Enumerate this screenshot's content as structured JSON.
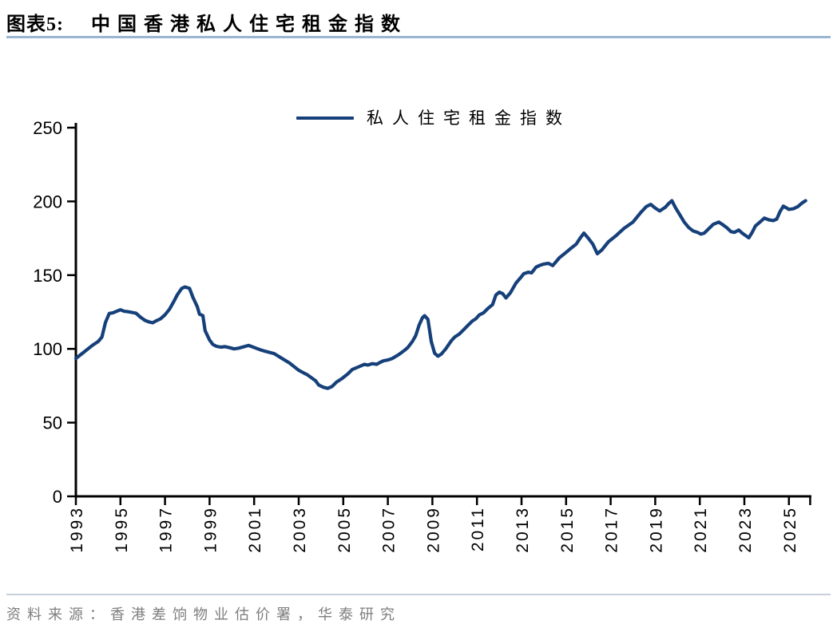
{
  "header": {
    "tag": "图表5:",
    "title": "中国香港私人住宅租金指数"
  },
  "legend": {
    "label": "私人住宅租金指数"
  },
  "source": {
    "text": "资料来源：香港差饷物业估价署，华泰研究"
  },
  "colors": {
    "line": "#16407A",
    "axis": "#000000",
    "title_underline": "#9BB6D2",
    "source_divider": "#C7D0D8",
    "source_text": "#7E7E7E"
  },
  "chart_data": {
    "type": "line",
    "title": "中国香港私人住宅租金指数",
    "xlabel": "",
    "ylabel": "",
    "ylim": [
      0,
      250
    ],
    "yticks": [
      0,
      50,
      100,
      150,
      200,
      250
    ],
    "x_tick_years": [
      1993,
      1995,
      1997,
      1999,
      2001,
      2003,
      2005,
      2007,
      2009,
      2011,
      2013,
      2015,
      2017,
      2019,
      2021,
      2023,
      2025
    ],
    "xlim": [
      1993,
      2025.9
    ],
    "grid": false,
    "legend_position": "top-center",
    "series": [
      {
        "name": "私人住宅租金指数",
        "color": "#16407A",
        "points": [
          [
            1993.0,
            93.5
          ],
          [
            1993.25,
            96.5
          ],
          [
            1993.5,
            99.5
          ],
          [
            1993.75,
            102.5
          ],
          [
            1994.0,
            105
          ],
          [
            1994.17,
            108
          ],
          [
            1994.33,
            118
          ],
          [
            1994.5,
            124
          ],
          [
            1994.67,
            124.5
          ],
          [
            1994.83,
            125.5
          ],
          [
            1995.0,
            126.5
          ],
          [
            1995.17,
            125.5
          ],
          [
            1995.33,
            125.2
          ],
          [
            1995.5,
            124.8
          ],
          [
            1995.7,
            124.2
          ],
          [
            1995.9,
            121.5
          ],
          [
            1996.1,
            119.3
          ],
          [
            1996.3,
            118.2
          ],
          [
            1996.45,
            117.7
          ],
          [
            1996.6,
            119
          ],
          [
            1996.8,
            120.4
          ],
          [
            1997.0,
            123.1
          ],
          [
            1997.2,
            126.9
          ],
          [
            1997.4,
            132.3
          ],
          [
            1997.55,
            136.6
          ],
          [
            1997.75,
            141
          ],
          [
            1997.9,
            142
          ],
          [
            1998.1,
            141
          ],
          [
            1998.25,
            135
          ],
          [
            1998.45,
            128.5
          ],
          [
            1998.55,
            123.5
          ],
          [
            1998.7,
            122.6
          ],
          [
            1998.8,
            112.4
          ],
          [
            1999.0,
            106
          ],
          [
            1999.15,
            103
          ],
          [
            1999.3,
            101.8
          ],
          [
            1999.5,
            101.2
          ],
          [
            1999.7,
            101.5
          ],
          [
            1999.9,
            100.8
          ],
          [
            2000.1,
            100
          ],
          [
            2000.3,
            100.5
          ],
          [
            2000.5,
            101.3
          ],
          [
            2000.75,
            102.3
          ],
          [
            2001.0,
            101
          ],
          [
            2001.25,
            99.5
          ],
          [
            2001.5,
            98.4
          ],
          [
            2001.9,
            96.8
          ],
          [
            2002.25,
            93.5
          ],
          [
            2002.6,
            90.3
          ],
          [
            2003.0,
            85.5
          ],
          [
            2003.4,
            82.3
          ],
          [
            2003.75,
            78.5
          ],
          [
            2003.9,
            75.5
          ],
          [
            2004.1,
            74
          ],
          [
            2004.3,
            73.2
          ],
          [
            2004.5,
            74.5
          ],
          [
            2004.7,
            77.5
          ],
          [
            2004.95,
            80
          ],
          [
            2005.2,
            83
          ],
          [
            2005.4,
            86
          ],
          [
            2005.75,
            88.2
          ],
          [
            2005.95,
            89.5
          ],
          [
            2006.1,
            89
          ],
          [
            2006.3,
            90
          ],
          [
            2006.5,
            89.5
          ],
          [
            2006.65,
            90.8
          ],
          [
            2006.8,
            91.9
          ],
          [
            2007.0,
            92.5
          ],
          [
            2007.2,
            93.5
          ],
          [
            2007.5,
            96.2
          ],
          [
            2007.75,
            99
          ],
          [
            2007.9,
            101
          ],
          [
            2008.1,
            105
          ],
          [
            2008.25,
            109
          ],
          [
            2008.4,
            116
          ],
          [
            2008.55,
            121
          ],
          [
            2008.65,
            122.5
          ],
          [
            2008.8,
            120
          ],
          [
            2008.95,
            105
          ],
          [
            2009.1,
            97
          ],
          [
            2009.25,
            95
          ],
          [
            2009.4,
            96.5
          ],
          [
            2009.6,
            100
          ],
          [
            2009.85,
            105.5
          ],
          [
            2010.0,
            108
          ],
          [
            2010.2,
            110
          ],
          [
            2010.4,
            113
          ],
          [
            2010.6,
            116
          ],
          [
            2010.8,
            119
          ],
          [
            2010.95,
            120.4
          ],
          [
            2011.1,
            123
          ],
          [
            2011.3,
            124.5
          ],
          [
            2011.5,
            127.5
          ],
          [
            2011.7,
            130
          ],
          [
            2011.85,
            136.5
          ],
          [
            2012.0,
            138.5
          ],
          [
            2012.15,
            137.5
          ],
          [
            2012.3,
            134.5
          ],
          [
            2012.5,
            138
          ],
          [
            2012.75,
            144.6
          ],
          [
            2013.0,
            149
          ],
          [
            2013.1,
            151
          ],
          [
            2013.3,
            152
          ],
          [
            2013.45,
            151.5
          ],
          [
            2013.65,
            155.4
          ],
          [
            2013.8,
            156.5
          ],
          [
            2014.0,
            157.5
          ],
          [
            2014.2,
            158
          ],
          [
            2014.4,
            156.5
          ],
          [
            2014.7,
            161.8
          ],
          [
            2015.0,
            165.5
          ],
          [
            2015.2,
            168
          ],
          [
            2015.45,
            171
          ],
          [
            2015.65,
            175.5
          ],
          [
            2015.8,
            178.5
          ],
          [
            2016.0,
            175
          ],
          [
            2016.2,
            171
          ],
          [
            2016.4,
            164.5
          ],
          [
            2016.6,
            167
          ],
          [
            2016.9,
            172.6
          ],
          [
            2017.25,
            176.9
          ],
          [
            2017.6,
            181.7
          ],
          [
            2018.0,
            186
          ],
          [
            2018.35,
            192.5
          ],
          [
            2018.6,
            196.5
          ],
          [
            2018.8,
            198
          ],
          [
            2019.0,
            195.5
          ],
          [
            2019.2,
            193.5
          ],
          [
            2019.45,
            196
          ],
          [
            2019.6,
            198.5
          ],
          [
            2019.75,
            200.5
          ],
          [
            2019.9,
            196
          ],
          [
            2020.1,
            191
          ],
          [
            2020.3,
            186
          ],
          [
            2020.5,
            182.3
          ],
          [
            2020.7,
            180
          ],
          [
            2020.9,
            179
          ],
          [
            2021.05,
            177.8
          ],
          [
            2021.2,
            178.5
          ],
          [
            2021.4,
            181.5
          ],
          [
            2021.6,
            184.4
          ],
          [
            2021.85,
            186
          ],
          [
            2022.0,
            184.5
          ],
          [
            2022.2,
            182.3
          ],
          [
            2022.4,
            179.5
          ],
          [
            2022.55,
            179
          ],
          [
            2022.75,
            180.6
          ],
          [
            2022.9,
            178.5
          ],
          [
            2023.05,
            176.9
          ],
          [
            2023.2,
            175.3
          ],
          [
            2023.35,
            179
          ],
          [
            2023.5,
            183.4
          ],
          [
            2023.7,
            186
          ],
          [
            2023.9,
            188.7
          ],
          [
            2024.1,
            187.5
          ],
          [
            2024.3,
            187
          ],
          [
            2024.45,
            188
          ],
          [
            2024.6,
            193
          ],
          [
            2024.75,
            196.8
          ],
          [
            2024.9,
            195.5
          ],
          [
            2025.0,
            194.6
          ],
          [
            2025.2,
            195
          ],
          [
            2025.4,
            196.5
          ],
          [
            2025.6,
            199
          ],
          [
            2025.75,
            200.5
          ]
        ]
      }
    ]
  }
}
